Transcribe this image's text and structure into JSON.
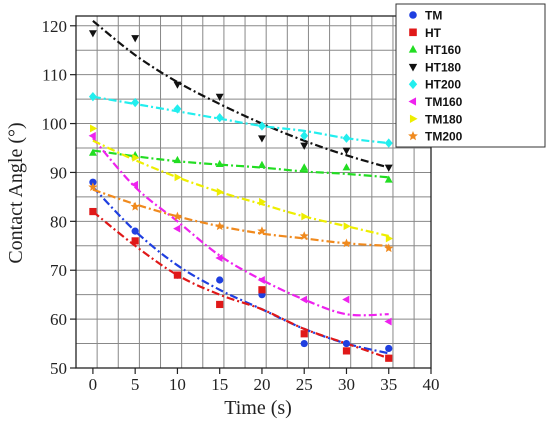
{
  "chart_data": {
    "type": "scatter",
    "xlabel": "Time (s)",
    "ylabel": "Contact Angle (°)",
    "xlim": [
      -2,
      40
    ],
    "ylim": [
      50,
      122
    ],
    "xticks": [
      0,
      5,
      10,
      15,
      20,
      25,
      30,
      35,
      40
    ],
    "yticks": [
      50,
      60,
      70,
      80,
      90,
      100,
      110,
      120
    ],
    "grid": true,
    "legend_position": "top-right outside plot",
    "x": [
      0,
      5,
      10,
      15,
      20,
      25,
      30,
      35
    ],
    "series": [
      {
        "name": "TM",
        "color": "#1f3fe0",
        "marker": "circle",
        "values": [
          88,
          78,
          69,
          68,
          65,
          55,
          55,
          54
        ],
        "fit": [
          87,
          78,
          71,
          66,
          62,
          58,
          55,
          53
        ]
      },
      {
        "name": "HT",
        "color": "#e01818",
        "marker": "square",
        "values": [
          82,
          76,
          69,
          63,
          66,
          57,
          53.5,
          52
        ],
        "fit": [
          82,
          75,
          69,
          65,
          62,
          58,
          55,
          52
        ]
      },
      {
        "name": "HT160",
        "color": "#22dd22",
        "marker": "triangle-up",
        "values": [
          94,
          93.5,
          92.5,
          91.7,
          91.5,
          91,
          91,
          88.5
        ],
        "fit": [
          94.5,
          93.3,
          92.3,
          91.6,
          91,
          90.2,
          89.7,
          89
        ]
      },
      {
        "name": "HT180",
        "color": "#111111",
        "marker": "triangle-down",
        "values": [
          118.5,
          117.5,
          108,
          105.5,
          97,
          95.5,
          94.5,
          91
        ],
        "fit": [
          121,
          114,
          108.5,
          104,
          100,
          96.5,
          93.5,
          91
        ]
      },
      {
        "name": "HT200",
        "color": "#22eeee",
        "marker": "diamond",
        "values": [
          105.5,
          104.3,
          103,
          101.2,
          99.5,
          97.5,
          97,
          96
        ],
        "fit": [
          105.5,
          104,
          102.5,
          101,
          99.5,
          98.5,
          97,
          96
        ]
      },
      {
        "name": "TM160",
        "color": "#ee22ee",
        "marker": "triangle-left",
        "values": [
          97.5,
          87.5,
          78.5,
          72.5,
          68,
          64,
          64,
          59.5
        ],
        "fit": [
          97,
          87,
          80,
          73,
          68,
          64,
          61,
          61
        ]
      },
      {
        "name": "TM180",
        "color": "#eeee00",
        "marker": "triangle-right",
        "values": [
          99,
          93,
          89,
          86,
          84,
          81,
          79,
          76.5
        ],
        "fit": [
          96.5,
          92.5,
          89,
          86,
          83.5,
          81,
          79,
          77
        ]
      },
      {
        "name": "TM200",
        "color": "#f08a1e",
        "marker": "star",
        "values": [
          87,
          83,
          81,
          79,
          78,
          77,
          75.5,
          74.5
        ],
        "fit": [
          86.5,
          83.5,
          81,
          79,
          77.5,
          76.5,
          75.5,
          75
        ]
      }
    ]
  }
}
